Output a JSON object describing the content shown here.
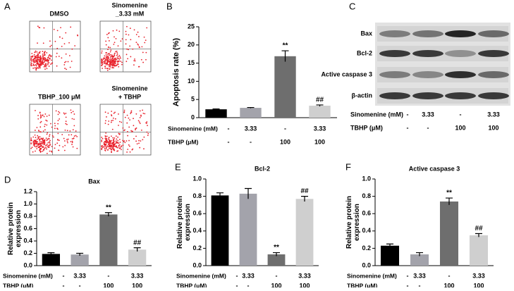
{
  "flow_cytometry": {
    "panel": "A",
    "plots": [
      {
        "label": [
          "DMSO"
        ]
      },
      {
        "label": [
          "Sinomenine",
          "_3.33 mM"
        ]
      },
      {
        "label": [
          "TBHP_100 μM"
        ]
      },
      {
        "label": [
          "Sinomenine",
          "+ TBHP"
        ]
      }
    ]
  },
  "western_blot": {
    "panel": "C",
    "bands": [
      "Bax",
      "Bcl-2",
      "Active caspase 3",
      "β-actin"
    ],
    "treatments": [
      {
        "name": "Sinomenine (mM)",
        "values": [
          "-",
          "3.33",
          "-",
          "3.33"
        ]
      },
      {
        "name": "TBHP (μM)",
        "values": [
          "-",
          "-",
          "100",
          "100"
        ]
      }
    ]
  },
  "chart_data": [
    {
      "type": "bar",
      "panel": "B",
      "y_label": "Apoptosis rate (%)",
      "values": [
        2.3,
        2.7,
        16.9,
        3.3
      ],
      "errors": [
        0.1,
        0.1,
        1.5,
        0.2
      ],
      "colors": [
        "#000000",
        "#a3a3ab",
        "#6e6e6e",
        "#cfcfcf"
      ],
      "markers": [
        null,
        null,
        "**",
        "##"
      ],
      "ylim": [
        0,
        25
      ],
      "yticks": [
        0,
        5,
        10,
        15,
        20,
        25
      ],
      "treatments": [
        {
          "name": "Sinomenine (mM)",
          "values": [
            "-",
            "3.33",
            "-",
            "3.33"
          ]
        },
        {
          "name": "TBHP (μM)",
          "values": [
            "-",
            "-",
            "100",
            "100"
          ]
        }
      ]
    },
    {
      "type": "bar",
      "panel": "D",
      "title": "Bax",
      "y_label": "Relative protein expression",
      "values": [
        0.19,
        0.18,
        0.83,
        0.26
      ],
      "errors": [
        0.02,
        0.02,
        0.03,
        0.03
      ],
      "colors": [
        "#000000",
        "#a3a3ab",
        "#6e6e6e",
        "#cfcfcf"
      ],
      "markers": [
        null,
        null,
        "**",
        "##"
      ],
      "ylim": [
        0,
        1.2
      ],
      "yticks": [
        {
          "value": 0,
          "label": "0.0"
        },
        0.2,
        0.4,
        0.6,
        0.8,
        {
          "value": 1,
          "label": "1.0"
        },
        1.2
      ],
      "treatments": [
        {
          "name": "Sinomenine (mM)",
          "values": [
            "-",
            "3.33",
            "-",
            "3.33"
          ]
        },
        {
          "name": "TBHP (μM)",
          "values": [
            "-",
            "-",
            "100",
            "100"
          ]
        }
      ]
    },
    {
      "type": "bar",
      "panel": "E",
      "title": "Bcl-2",
      "y_label": "Relative protein expression",
      "values": [
        0.81,
        0.83,
        0.13,
        0.77
      ],
      "errors": [
        0.03,
        0.06,
        0.02,
        0.03
      ],
      "colors": [
        "#000000",
        "#a3a3ab",
        "#6e6e6e",
        "#cfcfcf"
      ],
      "markers": [
        null,
        null,
        "**",
        "##"
      ],
      "ylim": [
        0,
        1
      ],
      "yticks": [
        {
          "value": 0,
          "label": "0.0"
        },
        0.2,
        0.4,
        0.6,
        0.8,
        {
          "value": 1,
          "label": "1.0"
        }
      ],
      "treatments": [
        {
          "name": "Sinomenine (mM)",
          "values": [
            "-",
            "3.33",
            "-",
            "3.33"
          ]
        },
        {
          "name": "TBHP (μM)",
          "values": [
            "-",
            "-",
            "100",
            "100"
          ]
        }
      ]
    },
    {
      "type": "bar",
      "panel": "F",
      "title": "Active caspase 3",
      "y_label": "Relative protein expression",
      "values": [
        0.23,
        0.13,
        0.74,
        0.35
      ],
      "errors": [
        0.02,
        0.02,
        0.04,
        0.02
      ],
      "colors": [
        "#000000",
        "#a3a3ab",
        "#6e6e6e",
        "#cfcfcf"
      ],
      "markers": [
        null,
        null,
        "**",
        "##"
      ],
      "ylim": [
        0,
        1
      ],
      "yticks": [
        {
          "value": 0,
          "label": "0.0"
        },
        0.2,
        0.4,
        0.6,
        0.8,
        {
          "value": 1,
          "label": "1.0"
        }
      ],
      "treatments": [
        {
          "name": "Sinomenine (mM)",
          "values": [
            "-",
            "3.33",
            "-",
            "3.33"
          ]
        },
        {
          "name": "TBHP (μM)",
          "values": [
            "-",
            "-",
            "100",
            "100"
          ]
        }
      ]
    }
  ]
}
